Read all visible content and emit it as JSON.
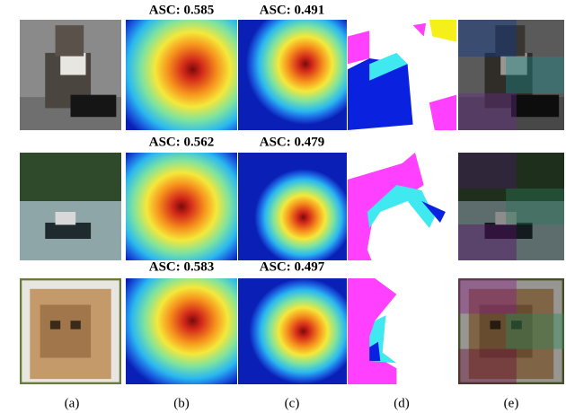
{
  "rows": [
    {
      "asc_b": "ASC: 0.585",
      "asc_c": "ASC: 0.491"
    },
    {
      "asc_b": "ASC: 0.562",
      "asc_c": "ASC: 0.479"
    },
    {
      "asc_b": "ASC: 0.583",
      "asc_c": "ASC: 0.497"
    }
  ],
  "captions": [
    "(a)",
    "(b)",
    "(c)",
    "(d)",
    "(e)"
  ]
}
